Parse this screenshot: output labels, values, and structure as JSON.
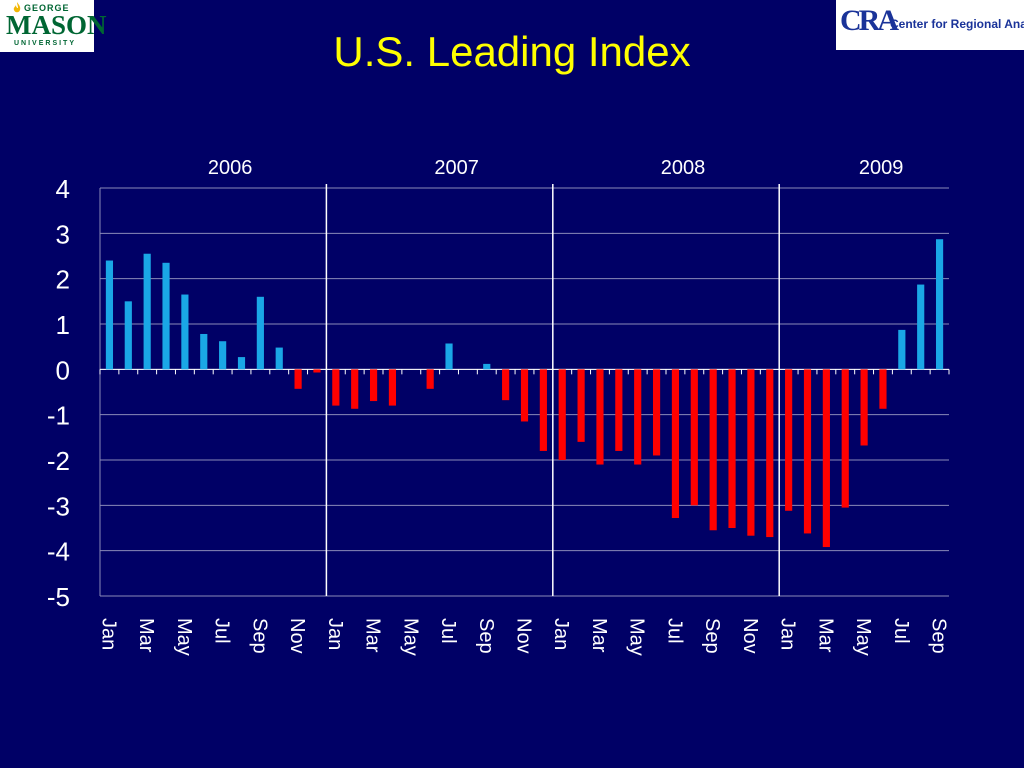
{
  "slide": {
    "title": "U.S. Leading Index"
  },
  "logos": {
    "left": {
      "line1": "GEORGE",
      "line2": "MASON",
      "line3": "UNIVERSITY"
    },
    "right": {
      "mark": "CRA",
      "text": "Center for Regional Analysis"
    }
  },
  "colors": {
    "background": "#000066",
    "title": "#ffff00",
    "positive": "#1aa7e6",
    "negative": "#ff0000",
    "text": "#ffffff"
  },
  "chart_data": {
    "type": "bar",
    "title": "U.S. Leading Index",
    "xlabel": "",
    "ylabel": "",
    "ylim": [
      -5,
      4
    ],
    "yticks": [
      4,
      3,
      2,
      1,
      0,
      -1,
      -2,
      -3,
      -4,
      -5
    ],
    "grid": true,
    "legend": "none",
    "year_labels": [
      "2006",
      "2007",
      "2008",
      "2009"
    ],
    "categories": [
      "Jan",
      "Feb",
      "Mar",
      "Apr",
      "May",
      "Jun",
      "Jul",
      "Aug",
      "Sep",
      "Oct",
      "Nov",
      "Dec",
      "Jan",
      "Feb",
      "Mar",
      "Apr",
      "May",
      "Jun",
      "Jul",
      "Aug",
      "Sep",
      "Oct",
      "Nov",
      "Dec",
      "Jan",
      "Feb",
      "Mar",
      "Apr",
      "May",
      "Jun",
      "Jul",
      "Aug",
      "Sep",
      "Oct",
      "Nov",
      "Dec",
      "Jan",
      "Feb",
      "Mar",
      "Apr",
      "May",
      "Jun",
      "Jul",
      "Aug",
      "Sep"
    ],
    "tick_labels": [
      "Jan",
      "Mar",
      "May",
      "Jul",
      "Sep",
      "Nov",
      "Jan",
      "Mar",
      "May",
      "Jul",
      "Sep",
      "Nov",
      "Jan",
      "Mar",
      "May",
      "Jul",
      "Sep",
      "Nov",
      "Jan",
      "Mar",
      "May",
      "Jul",
      "Sep"
    ],
    "values": [
      2.4,
      1.5,
      2.55,
      2.35,
      1.65,
      0.78,
      0.62,
      0.27,
      1.6,
      0.48,
      -0.43,
      -0.07,
      -0.8,
      -0.87,
      -0.7,
      -0.8,
      0.0,
      -0.43,
      0.57,
      0.0,
      0.12,
      -0.68,
      -1.15,
      -1.8,
      -2.0,
      -1.6,
      -2.1,
      -1.8,
      -2.1,
      -1.9,
      -3.28,
      -3.0,
      -3.55,
      -3.5,
      -3.67,
      -3.7,
      -3.12,
      -3.62,
      -3.92,
      -3.05,
      -1.68,
      -0.87,
      0.87,
      1.87,
      2.87
    ]
  }
}
